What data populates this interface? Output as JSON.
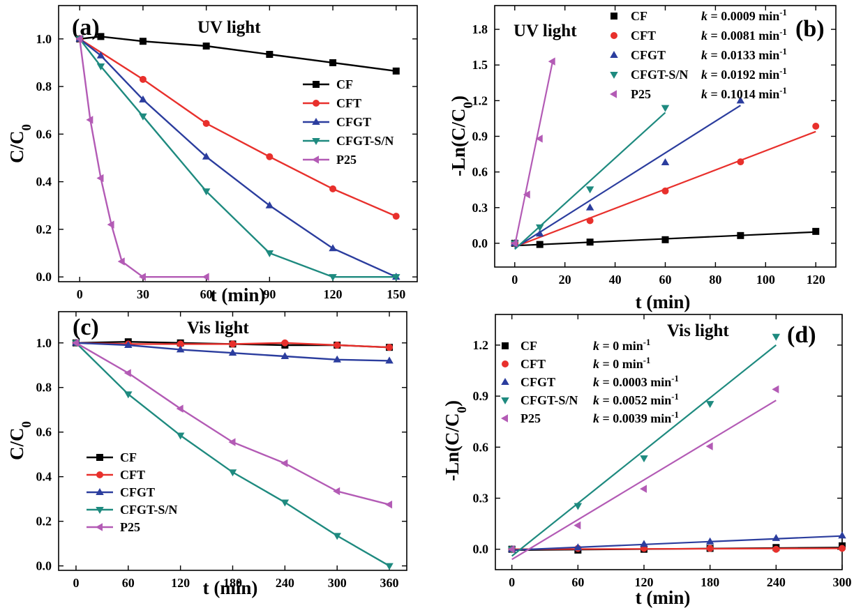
{
  "chart_data": [
    {
      "type": "line",
      "panel": "(a)",
      "condition": "UV light",
      "xlabel": "t (min)",
      "ylabel": "C/C0",
      "xlim": [
        -10,
        160
      ],
      "ylim": [
        -0.02,
        1.14
      ],
      "xticks": [
        0,
        30,
        60,
        90,
        120,
        150
      ],
      "yticks": [
        0.0,
        0.2,
        0.4,
        0.6,
        0.8,
        1.0
      ],
      "legend_position": "center-right",
      "series": [
        {
          "name": "CF",
          "color": "#000000",
          "marker": "square",
          "x": [
            0,
            10,
            30,
            60,
            90,
            120,
            150
          ],
          "y": [
            1.0,
            1.01,
            0.99,
            0.97,
            0.935,
            0.9,
            0.865
          ]
        },
        {
          "name": "CFT",
          "color": "#e8302c",
          "marker": "circle",
          "x": [
            0,
            30,
            60,
            90,
            120,
            150
          ],
          "y": [
            1.0,
            0.83,
            0.645,
            0.505,
            0.37,
            0.255
          ]
        },
        {
          "name": "CFGT",
          "color": "#2b3d9e",
          "marker": "triangle-up",
          "x": [
            0,
            10,
            30,
            60,
            90,
            120,
            150
          ],
          "y": [
            1.0,
            0.93,
            0.745,
            0.505,
            0.3,
            0.12,
            0.0
          ]
        },
        {
          "name": "CFGT-S/N",
          "color": "#1e8a7f",
          "marker": "triangle-down",
          "x": [
            0,
            10,
            30,
            60,
            90,
            120,
            150
          ],
          "y": [
            1.0,
            0.885,
            0.675,
            0.36,
            0.1,
            0.0,
            0.0
          ]
        },
        {
          "name": "P25",
          "color": "#b35bb5",
          "marker": "triangle-left",
          "x": [
            0,
            5,
            10,
            15,
            20,
            30,
            60
          ],
          "y": [
            1.0,
            0.66,
            0.415,
            0.22,
            0.065,
            0.0,
            0.0
          ]
        }
      ]
    },
    {
      "type": "scatter",
      "panel": "(b)",
      "condition": "UV light",
      "xlabel": "t (min)",
      "ylabel": "-Ln(C/C0)",
      "xlim": [
        -8,
        128
      ],
      "ylim": [
        -0.2,
        2.0
      ],
      "xticks": [
        0,
        20,
        40,
        60,
        80,
        100,
        120
      ],
      "yticks": [
        0.0,
        0.3,
        0.6,
        0.9,
        1.2,
        1.5,
        1.8
      ],
      "legend_position": "top-right",
      "series": [
        {
          "name": "CF",
          "k_label": "k = 0.0009 min",
          "color": "#000000",
          "marker": "square",
          "x": [
            0,
            10,
            30,
            60,
            90,
            120
          ],
          "y": [
            0.0,
            -0.01,
            0.01,
            0.03,
            0.065,
            0.1
          ],
          "fit": {
            "x": [
              0,
              120
            ],
            "y": [
              -0.02,
              0.095
            ]
          }
        },
        {
          "name": "CFT",
          "k_label": "k = 0.0081 min",
          "color": "#e8302c",
          "marker": "circle",
          "x": [
            0,
            30,
            60,
            90,
            120
          ],
          "y": [
            0.0,
            0.19,
            0.44,
            0.685,
            0.985
          ],
          "fit": {
            "x": [
              0,
              120
            ],
            "y": [
              -0.03,
              0.94
            ]
          }
        },
        {
          "name": "CFGT",
          "k_label": "k = 0.0133 min",
          "color": "#2b3d9e",
          "marker": "triangle-up",
          "x": [
            0,
            10,
            30,
            60,
            90
          ],
          "y": [
            0.0,
            0.08,
            0.3,
            0.68,
            1.2
          ],
          "fit": {
            "x": [
              0,
              90
            ],
            "y": [
              -0.04,
              1.16
            ]
          }
        },
        {
          "name": "CFGT-S/N",
          "k_label": "k = 0.0192 min",
          "color": "#1e8a7f",
          "marker": "triangle-down",
          "x": [
            0,
            10,
            30,
            60
          ],
          "y": [
            0.0,
            0.135,
            0.455,
            1.14
          ],
          "fit": {
            "x": [
              0,
              60
            ],
            "y": [
              -0.05,
              1.1
            ]
          }
        },
        {
          "name": "P25",
          "k_label": "k = 0.1014 min",
          "color": "#b35bb5",
          "marker": "triangle-left",
          "x": [
            0,
            5,
            10,
            15
          ],
          "y": [
            0.0,
            0.41,
            0.88,
            1.53
          ],
          "fit": {
            "x": [
              0,
              15
            ],
            "y": [
              -0.02,
              1.52
            ]
          }
        }
      ]
    },
    {
      "type": "line",
      "panel": "(c)",
      "condition": "Vis  light",
      "xlabel": "t (min)",
      "ylabel": "C/C0",
      "xlim": [
        -20,
        380
      ],
      "ylim": [
        -0.02,
        1.14
      ],
      "xticks": [
        0,
        60,
        120,
        180,
        240,
        300,
        360
      ],
      "yticks": [
        0.0,
        0.2,
        0.4,
        0.6,
        0.8,
        1.0
      ],
      "legend_position": "center-left",
      "series": [
        {
          "name": "CF",
          "color": "#000000",
          "marker": "square",
          "x": [
            0,
            60,
            120,
            180,
            240,
            300,
            360
          ],
          "y": [
            1.0,
            1.005,
            1.0,
            0.995,
            0.99,
            0.99,
            0.98
          ]
        },
        {
          "name": "CFT",
          "color": "#e8302c",
          "marker": "circle",
          "x": [
            0,
            60,
            120,
            180,
            240,
            300,
            360
          ],
          "y": [
            1.0,
            0.995,
            0.995,
            0.995,
            1.0,
            0.99,
            0.98
          ]
        },
        {
          "name": "CFGT",
          "color": "#2b3d9e",
          "marker": "triangle-up",
          "x": [
            0,
            60,
            120,
            180,
            240,
            300,
            360
          ],
          "y": [
            1.0,
            0.99,
            0.97,
            0.955,
            0.94,
            0.925,
            0.92
          ]
        },
        {
          "name": "CFGT-S/N",
          "color": "#1e8a7f",
          "marker": "triangle-down",
          "x": [
            0,
            60,
            120,
            180,
            240,
            300,
            360
          ],
          "y": [
            1.0,
            0.77,
            0.585,
            0.42,
            0.285,
            0.135,
            0.0
          ]
        },
        {
          "name": "P25",
          "color": "#b35bb5",
          "marker": "triangle-left",
          "x": [
            0,
            60,
            120,
            180,
            240,
            300,
            360
          ],
          "y": [
            1.0,
            0.865,
            0.705,
            0.555,
            0.46,
            0.335,
            0.275
          ]
        }
      ]
    },
    {
      "type": "scatter",
      "panel": "(d)",
      "condition": "Vis light",
      "xlabel": "t (min)",
      "ylabel": "-Ln(C/C0)",
      "xlim": [
        -15,
        300
      ],
      "ylim": [
        -0.12,
        1.38
      ],
      "xticks": [
        0,
        60,
        120,
        180,
        240,
        300
      ],
      "yticks": [
        0.0,
        0.3,
        0.6,
        0.9,
        1.2
      ],
      "legend_position": "top-left",
      "series": [
        {
          "name": "CF",
          "k_label": "k = 0 min",
          "color": "#000000",
          "marker": "square",
          "x": [
            0,
            60,
            120,
            180,
            240,
            300
          ],
          "y": [
            0.0,
            -0.005,
            0.0,
            0.005,
            0.01,
            0.02
          ],
          "fit": {
            "x": [
              0,
              300
            ],
            "y": [
              -0.005,
              0.01
            ]
          }
        },
        {
          "name": "CFT",
          "k_label": "k = 0 min",
          "color": "#e8302c",
          "marker": "circle",
          "x": [
            0,
            60,
            120,
            180,
            240,
            300
          ],
          "y": [
            0.0,
            0.005,
            0.005,
            0.005,
            0.0,
            0.005
          ],
          "fit": {
            "x": [
              0,
              300
            ],
            "y": [
              0.0,
              0.005
            ]
          }
        },
        {
          "name": "CFGT",
          "k_label": "k = 0.0003 min",
          "color": "#2b3d9e",
          "marker": "triangle-up",
          "x": [
            0,
            60,
            120,
            180,
            240,
            300
          ],
          "y": [
            0.0,
            0.01,
            0.03,
            0.045,
            0.065,
            0.08
          ],
          "fit": {
            "x": [
              0,
              300
            ],
            "y": [
              -0.005,
              0.078
            ]
          }
        },
        {
          "name": "CFGT-S/N",
          "k_label": "k = 0.0052 min",
          "color": "#1e8a7f",
          "marker": "triangle-down",
          "x": [
            0,
            60,
            120,
            180,
            240
          ],
          "y": [
            0.0,
            0.255,
            0.535,
            0.855,
            1.25
          ],
          "fit": {
            "x": [
              0,
              240
            ],
            "y": [
              -0.04,
              1.2
            ]
          }
        },
        {
          "name": "P25",
          "k_label": "k = 0.0039 min",
          "color": "#b35bb5",
          "marker": "triangle-left",
          "x": [
            0,
            60,
            120,
            180,
            240
          ],
          "y": [
            0.0,
            0.14,
            0.355,
            0.605,
            0.94
          ],
          "fit": {
            "x": [
              0,
              240
            ],
            "y": [
              -0.06,
              0.875
            ]
          }
        }
      ]
    }
  ]
}
